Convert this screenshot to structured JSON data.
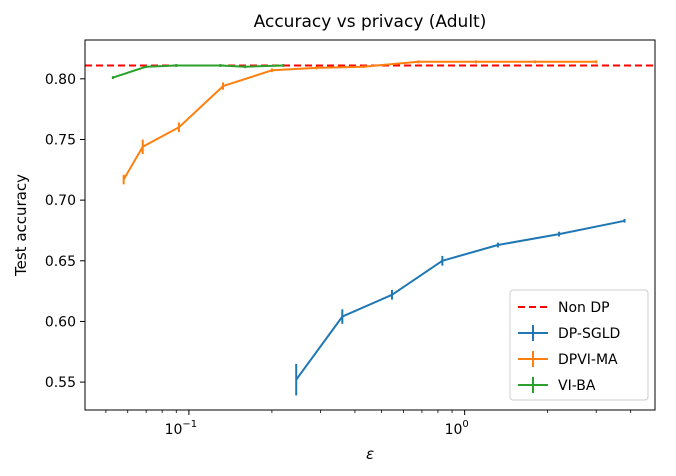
{
  "chart_data": {
    "type": "line",
    "title": "Accuracy vs privacy (Adult)",
    "xlabel": "ε",
    "ylabel": "Test accuracy",
    "xscale": "log",
    "xlim": [
      0.042,
      4.9
    ],
    "ylim": [
      0.527,
      0.832
    ],
    "yticks": [
      0.55,
      0.6,
      0.65,
      0.7,
      0.75,
      0.8
    ],
    "ytick_labels": [
      "0.55",
      "0.60",
      "0.65",
      "0.70",
      "0.75",
      "0.80"
    ],
    "xticks": [
      {
        "value": 0.1,
        "base": "10",
        "exp": "−1"
      },
      {
        "value": 1,
        "base": "10",
        "exp": "0"
      }
    ],
    "grid": false,
    "legend_position": "bottom-right",
    "reference_lines": [
      {
        "name": "Non DP",
        "y": 0.811,
        "color": "#ff0000",
        "style": "dashed"
      }
    ],
    "series": [
      {
        "name": "DP-SGLD",
        "color": "#1f77b4",
        "x": [
          0.245,
          0.36,
          0.545,
          0.83,
          1.32,
          2.2,
          3.8
        ],
        "y": [
          0.552,
          0.604,
          0.622,
          0.65,
          0.663,
          0.672,
          0.683
        ],
        "err": [
          0.013,
          0.006,
          0.004,
          0.004,
          0.002,
          0.002,
          0.0015
        ]
      },
      {
        "name": "DPVI-MA",
        "color": "#ff7f0e",
        "x": [
          0.058,
          0.068,
          0.092,
          0.133,
          0.2,
          0.29,
          0.43,
          0.68,
          1.1,
          1.8,
          3.0
        ],
        "y": [
          0.717,
          0.744,
          0.76,
          0.794,
          0.807,
          0.809,
          0.81,
          0.814,
          0.814,
          0.814,
          0.814
        ],
        "err": [
          0.004,
          0.006,
          0.004,
          0.003,
          0.0015,
          0.001,
          0.001,
          0.001,
          0.0008,
          0.0008,
          0.0008
        ]
      },
      {
        "name": "VI-BA",
        "color": "#2ca02c",
        "x": [
          0.053,
          0.07,
          0.09,
          0.13,
          0.16,
          0.22
        ],
        "y": [
          0.801,
          0.81,
          0.811,
          0.811,
          0.81,
          0.811
        ],
        "err": [
          0.0008,
          0.001,
          0.0008,
          0.0008,
          0.0008,
          0.0008
        ]
      }
    ]
  }
}
